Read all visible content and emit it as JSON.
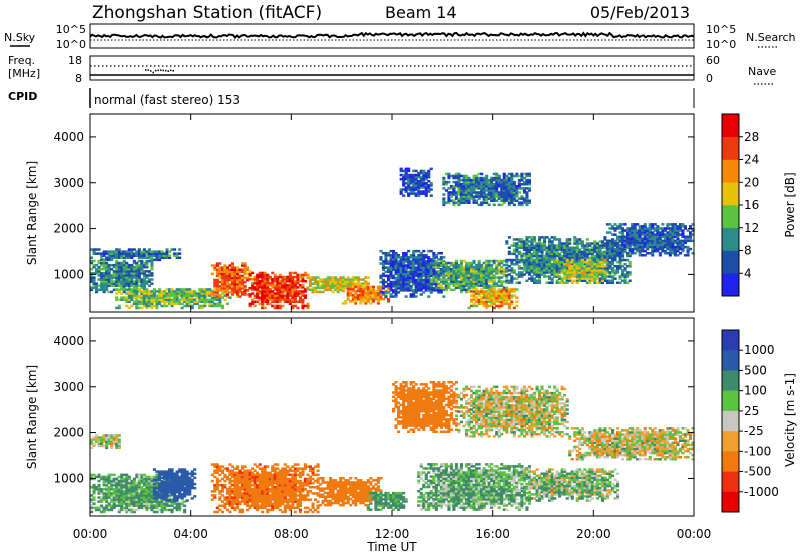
{
  "header": {
    "station": "Zhongshan Station (fitACF)",
    "beam": "Beam 14",
    "date": "05/Feb/2013"
  },
  "noise_panel": {
    "left_label": "N.Sky",
    "left_ticks": [
      "10^5",
      "10^0"
    ],
    "right_label": "N.Search",
    "right_ticks": [
      "10^5",
      "10^0"
    ]
  },
  "freq_panel": {
    "left_label_1": "Freq.",
    "left_label_2": "[MHz]",
    "left_ticks": [
      "18",
      "8"
    ],
    "right_label": "Nave",
    "right_ticks": [
      "60",
      "0"
    ]
  },
  "cpid_panel": {
    "label": "CPID",
    "text": "normal (fast stereo) 153"
  },
  "xaxis": {
    "label": "Time UT",
    "ticks": [
      "00:00",
      "04:00",
      "08:00",
      "12:00",
      "16:00",
      "20:00",
      "00:00"
    ]
  },
  "yaxis": {
    "label": "Slant Range [km]",
    "ticks": [
      "1000",
      "2000",
      "3000",
      "4000"
    ]
  },
  "power_scale": {
    "title": "Power [dB]",
    "labels": [
      "4",
      "8",
      "12",
      "16",
      "20",
      "24",
      "28"
    ],
    "colors": [
      "#2222ee",
      "#1e4fa8",
      "#2f8a8a",
      "#5cc243",
      "#e8c20a",
      "#f58a0a",
      "#ee3a10",
      "#e80000"
    ]
  },
  "velocity_scale": {
    "title": "Velocity [m s-1]",
    "labels": [
      "1000",
      "500",
      "100",
      "25",
      "-25",
      "-100",
      "-500",
      "-1000"
    ],
    "colors": [
      "#2a3cb0",
      "#2a5aa8",
      "#3f8a6a",
      "#5cc243",
      "#c8c8c0",
      "#f0a030",
      "#f07a10",
      "#ee3010",
      "#e80000"
    ]
  },
  "chart_data": [
    {
      "type": "heatmap",
      "title": "Power [dB]",
      "xlabel": "Time UT",
      "ylabel": "Slant Range [km]",
      "xlim": [
        "00:00",
        "24:00"
      ],
      "ylim": [
        180,
        4500
      ],
      "color_range": [
        0,
        30
      ],
      "blobs": [
        {
          "t0": 0.0,
          "t1": 3.6,
          "r0": 1300,
          "r1": 1550,
          "value": 8
        },
        {
          "t0": 0.0,
          "t1": 2.5,
          "r0": 600,
          "r1": 1300,
          "value": 10
        },
        {
          "t0": 1.0,
          "t1": 5.5,
          "r0": 250,
          "r1": 700,
          "value": 14
        },
        {
          "t0": 4.8,
          "t1": 6.3,
          "r0": 500,
          "r1": 1250,
          "value": 24
        },
        {
          "t0": 6.3,
          "t1": 8.6,
          "r0": 250,
          "r1": 1050,
          "value": 26
        },
        {
          "t0": 8.6,
          "t1": 11.0,
          "r0": 600,
          "r1": 950,
          "value": 18
        },
        {
          "t0": 10.0,
          "t1": 11.8,
          "r0": 350,
          "r1": 750,
          "value": 22
        },
        {
          "t0": 11.5,
          "t1": 14.0,
          "r0": 500,
          "r1": 1500,
          "value": 6
        },
        {
          "t0": 13.5,
          "t1": 16.5,
          "r0": 600,
          "r1": 1300,
          "value": 12
        },
        {
          "t0": 15.0,
          "t1": 17.0,
          "r0": 250,
          "r1": 700,
          "value": 20
        },
        {
          "t0": 14.0,
          "t1": 17.5,
          "r0": 2500,
          "r1": 3200,
          "value": 8
        },
        {
          "t0": 16.5,
          "t1": 21.5,
          "r0": 800,
          "r1": 1800,
          "value": 9
        },
        {
          "t0": 18.5,
          "t1": 20.5,
          "r0": 800,
          "r1": 1300,
          "value": 16
        },
        {
          "t0": 20.5,
          "t1": 24.0,
          "r0": 1400,
          "r1": 2100,
          "value": 7
        },
        {
          "t0": 12.3,
          "t1": 13.5,
          "r0": 2700,
          "r1": 3300,
          "value": 5
        }
      ]
    },
    {
      "type": "heatmap",
      "title": "Velocity [m s-1]",
      "xlabel": "Time UT",
      "ylabel": "Slant Range [km]",
      "xlim": [
        "00:00",
        "24:00"
      ],
      "ylim": [
        180,
        4500
      ],
      "color_range": [
        -1000,
        1000
      ],
      "blobs": [
        {
          "t0": 0.0,
          "t1": 1.2,
          "r0": 1650,
          "r1": 1950,
          "value": 0
        },
        {
          "t0": 0.0,
          "t1": 3.8,
          "r0": 250,
          "r1": 1100,
          "value": 120
        },
        {
          "t0": 2.5,
          "t1": 4.2,
          "r0": 500,
          "r1": 1200,
          "value": 800
        },
        {
          "t0": 4.8,
          "t1": 9.0,
          "r0": 250,
          "r1": 1300,
          "value": -400
        },
        {
          "t0": 9.0,
          "t1": 11.5,
          "r0": 400,
          "r1": 1000,
          "value": -250
        },
        {
          "t0": 11.0,
          "t1": 12.5,
          "r0": 300,
          "r1": 700,
          "value": 150
        },
        {
          "t0": 12.0,
          "t1": 14.5,
          "r0": 2000,
          "r1": 3100,
          "value": -300
        },
        {
          "t0": 13.0,
          "t1": 17.5,
          "r0": 300,
          "r1": 1300,
          "value": 100
        },
        {
          "t0": 14.5,
          "t1": 19.0,
          "r0": 1900,
          "r1": 3000,
          "value": 0
        },
        {
          "t0": 17.0,
          "t1": 21.0,
          "r0": 500,
          "r1": 1200,
          "value": 60
        },
        {
          "t0": 19.0,
          "t1": 24.0,
          "r0": 1400,
          "r1": 2100,
          "value": 0
        }
      ]
    }
  ]
}
